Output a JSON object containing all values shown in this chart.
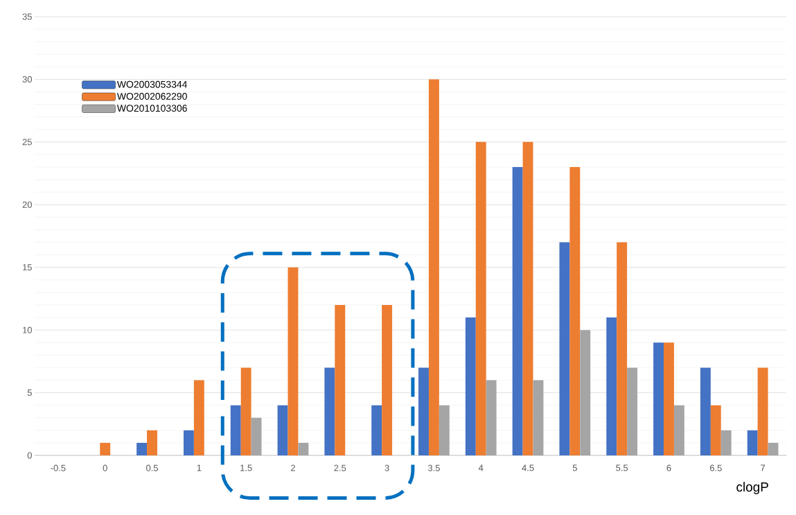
{
  "chart_data": {
    "type": "bar",
    "xlabel": "clogP",
    "categories": [
      "-0.5",
      "0",
      "0.5",
      "1",
      "1.5",
      "2",
      "2.5",
      "3",
      "3.5",
      "4",
      "4.5",
      "5",
      "5.5",
      "6",
      "6.5",
      "7"
    ],
    "series": [
      {
        "name": "WO2003053344",
        "color": "#4472c4",
        "values": [
          null,
          null,
          1,
          2,
          4,
          4,
          7,
          4,
          7,
          11,
          23,
          17,
          11,
          9,
          7,
          2
        ]
      },
      {
        "name": "WO2002062290",
        "color": "#ed7d31",
        "values": [
          null,
          1,
          2,
          6,
          7,
          15,
          12,
          12,
          30,
          25,
          25,
          23,
          17,
          9,
          4,
          7
        ]
      },
      {
        "name": "WO2010103306",
        "color": "#a5a5a5",
        "values": [
          null,
          null,
          null,
          null,
          3,
          1,
          null,
          null,
          4,
          6,
          6,
          10,
          7,
          4,
          2,
          1
        ]
      }
    ],
    "ylim": [
      0,
      35
    ],
    "yticks": [
      0,
      5,
      10,
      15,
      20,
      25,
      30,
      35
    ],
    "grid": "y",
    "legend": "top left"
  }
}
